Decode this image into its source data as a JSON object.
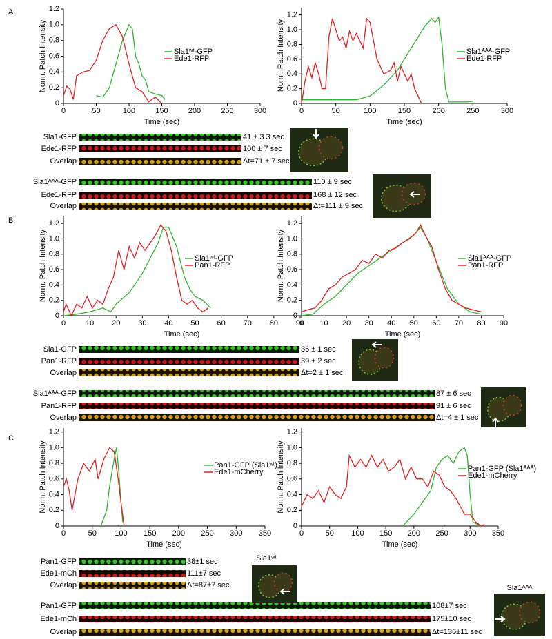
{
  "panels": [
    "A",
    "B",
    "C"
  ],
  "chart_data": [
    {
      "type": "line",
      "xlabel": "Time (sec)",
      "ylabel": "Norm. Patch Intensity",
      "xlim": [
        0,
        300
      ],
      "xticks": [
        0,
        50,
        100,
        150,
        200,
        250,
        300
      ],
      "ylim": [
        0,
        1.2
      ],
      "yticks": [
        0,
        0.2,
        0.4,
        0.6,
        0.8,
        {
          "value": 1,
          "label": "1.0"
        },
        1.2
      ],
      "series": [
        {
          "name": "Sla1ʷᵗ-GFP",
          "color": "#2eb82e",
          "x": [
            50,
            60,
            70,
            80,
            90,
            100,
            105,
            110,
            115,
            120,
            125,
            130,
            140,
            150,
            155
          ],
          "values": [
            0.1,
            0.08,
            0.2,
            0.5,
            0.8,
            1.0,
            0.95,
            0.6,
            0.5,
            0.35,
            0.3,
            0.15,
            0.12,
            0.1,
            0.05
          ]
        },
        {
          "name": "Ede1-RFP",
          "color": "#e02020",
          "x": [
            0,
            5,
            10,
            15,
            20,
            30,
            40,
            50,
            60,
            70,
            80,
            90,
            100,
            110,
            120,
            130,
            140,
            150
          ],
          "values": [
            0.1,
            0.22,
            0.18,
            0.05,
            0.35,
            0.4,
            0.42,
            0.55,
            0.8,
            0.95,
            1.0,
            0.85,
            0.5,
            0.2,
            0.15,
            0.02,
            0.08,
            0.0
          ]
        }
      ]
    },
    {
      "type": "line",
      "xlabel": "Time (sec)",
      "ylabel": "Norm. Patch Intensity",
      "xlim": [
        0,
        300
      ],
      "xticks": [
        0,
        50,
        100,
        150,
        200,
        250,
        300
      ],
      "ylim": [
        0,
        1.3
      ],
      "yticks": [
        0,
        0.2,
        0.4,
        0.6,
        0.8,
        {
          "value": 1,
          "label": "1.0"
        },
        1.2
      ],
      "series": [
        {
          "name": "Sla1ᴬᴬᴬ-GFP",
          "color": "#2eb82e",
          "x": [
            0,
            20,
            50,
            80,
            100,
            120,
            140,
            150,
            160,
            170,
            180,
            190,
            195,
            200,
            205,
            210,
            215,
            240,
            250
          ],
          "values": [
            0.05,
            0.05,
            0.05,
            0.05,
            0.1,
            0.25,
            0.45,
            0.6,
            0.75,
            0.9,
            1.05,
            1.15,
            1.1,
            1.17,
            0.8,
            0.2,
            0.02,
            0.02,
            0.03
          ]
        },
        {
          "name": "Ede1-RFP",
          "color": "#e02020",
          "x": [
            0,
            5,
            10,
            15,
            20,
            25,
            30,
            35,
            40,
            45,
            50,
            55,
            60,
            65,
            70,
            75,
            80,
            85,
            90,
            95,
            100,
            110,
            120,
            130,
            135,
            140,
            145,
            150,
            155,
            160,
            165,
            170,
            175
          ],
          "values": [
            0.0,
            0.3,
            0.5,
            0.35,
            0.55,
            0.4,
            0.2,
            0.2,
            0.9,
            1.15,
            1.0,
            0.85,
            0.9,
            0.75,
            0.98,
            0.85,
            0.95,
            0.85,
            0.75,
            1.15,
            1.1,
            0.6,
            0.4,
            0.45,
            0.55,
            0.3,
            0.5,
            0.4,
            0.3,
            0.4,
            0.2,
            0.1,
            0.0
          ]
        }
      ]
    },
    {
      "type": "line",
      "xlabel": "Time (sec)",
      "ylabel": "Norm. Patch Intensity",
      "xlim": [
        0,
        90
      ],
      "xticks": [
        0,
        10,
        20,
        30,
        40,
        50,
        60,
        70,
        80,
        90
      ],
      "ylim": [
        0,
        1.3
      ],
      "yticks": [
        0,
        0.2,
        0.4,
        0.6,
        0.8,
        {
          "value": 1,
          "label": "1.0"
        },
        1.2
      ],
      "series": [
        {
          "name": "Sla1ʷᵗ-GFP",
          "color": "#2eb82e",
          "x": [
            0,
            5,
            10,
            15,
            18,
            20,
            25,
            30,
            33,
            36,
            38,
            40,
            43,
            46,
            48,
            50,
            53,
            56
          ],
          "values": [
            0,
            0.02,
            0.05,
            0.1,
            0.05,
            0.15,
            0.3,
            0.55,
            0.75,
            0.95,
            1.15,
            1.15,
            0.9,
            0.5,
            0.35,
            0.25,
            0.2,
            0.1
          ]
        },
        {
          "name": "Pan1-RFP",
          "color": "#e02020",
          "x": [
            0,
            1,
            3,
            5,
            7,
            9,
            11,
            13,
            15,
            17,
            19,
            21,
            23,
            25,
            27,
            29,
            31,
            33,
            35,
            37,
            39,
            41,
            43,
            45,
            47,
            49,
            51,
            53,
            55
          ],
          "values": [
            0.05,
            0.15,
            0.0,
            0.15,
            0.1,
            0.25,
            0.1,
            0.2,
            0.15,
            0.35,
            0.5,
            0.85,
            0.6,
            0.9,
            0.75,
            0.95,
            0.85,
            0.95,
            1.05,
            1.18,
            1.1,
            0.85,
            0.5,
            0.2,
            0.15,
            0.2,
            0.1,
            0.05,
            0.1
          ]
        }
      ]
    },
    {
      "type": "line",
      "xlabel": "Time (sec)",
      "ylabel": "Norm. Patch Intensity",
      "xlim": [
        0,
        90
      ],
      "xticks": [
        0,
        10,
        20,
        30,
        40,
        50,
        60,
        70,
        80,
        90
      ],
      "ylim": [
        0,
        1.3
      ],
      "yticks": [
        0,
        0.2,
        0.4,
        0.6,
        0.8,
        {
          "value": 1,
          "label": "1.0"
        },
        1.2
      ],
      "series": [
        {
          "name": "Sla1ᴬᴬᴬ-GFP",
          "color": "#2eb82e",
          "x": [
            0,
            5,
            10,
            15,
            20,
            25,
            30,
            35,
            40,
            45,
            50,
            53,
            56,
            60,
            65,
            70,
            75,
            80
          ],
          "values": [
            0,
            0.02,
            0.15,
            0.25,
            0.4,
            0.55,
            0.65,
            0.75,
            0.85,
            0.95,
            1.05,
            1.15,
            1.0,
            0.7,
            0.35,
            0.15,
            0.05,
            0.02
          ]
        },
        {
          "name": "Pan1-RFP",
          "color": "#e02020",
          "x": [
            0,
            3,
            6,
            9,
            12,
            15,
            18,
            21,
            24,
            27,
            30,
            33,
            36,
            39,
            42,
            45,
            48,
            51,
            53,
            55,
            58,
            61,
            64,
            67,
            70,
            73,
            76,
            80
          ],
          "values": [
            0.05,
            0.08,
            0.1,
            0.2,
            0.35,
            0.4,
            0.5,
            0.55,
            0.6,
            0.72,
            0.68,
            0.8,
            0.75,
            0.85,
            0.88,
            0.95,
            1.0,
            1.08,
            1.18,
            1.05,
            0.9,
            0.6,
            0.35,
            0.2,
            0.15,
            0.1,
            0.08,
            0.05
          ]
        }
      ]
    },
    {
      "type": "line",
      "xlabel": "Time (sec)",
      "ylabel": "Norm. Patch Intensity",
      "xlim": [
        0,
        350
      ],
      "xticks": [
        0,
        50,
        100,
        150,
        200,
        250,
        300,
        350
      ],
      "ylim": [
        0,
        1.25
      ],
      "yticks": [
        0,
        0.2,
        0.4,
        0.6,
        0.8,
        {
          "value": 1,
          "label": "1.0"
        },
        1.2
      ],
      "series": [
        {
          "name": "Pan1-GFP (Sla1ʷᵗ)",
          "color": "#2eb82e",
          "x": [
            65,
            75,
            80,
            88,
            92,
            96,
            100,
            103
          ],
          "values": [
            0.0,
            0.2,
            0.5,
            0.85,
            1.0,
            0.7,
            0.3,
            0.05
          ]
        },
        {
          "name": "Ede1-mCherry",
          "color": "#e02020",
          "x": [
            0,
            5,
            10,
            15,
            25,
            35,
            45,
            55,
            60,
            70,
            80,
            88,
            95,
            100,
            105
          ],
          "values": [
            0.5,
            0.6,
            0.45,
            0.2,
            0.6,
            0.8,
            0.7,
            0.85,
            0.6,
            0.85,
            1.0,
            0.95,
            0.6,
            0.3,
            0.02
          ]
        }
      ]
    },
    {
      "type": "line",
      "xlabel": "Time (sec)",
      "ylabel": "Norm. Patch Intensity",
      "xlim": [
        0,
        350
      ],
      "xticks": [
        0,
        50,
        100,
        150,
        200,
        250,
        300,
        350
      ],
      "ylim": [
        0,
        1.25
      ],
      "yticks": [
        0,
        0.2,
        0.4,
        0.6,
        0.8,
        {
          "value": 1,
          "label": "1.0"
        },
        1.2
      ],
      "series": [
        {
          "name": "Pan1-GFP (Sla1ᴬᴬᴬ)",
          "color": "#2eb82e",
          "x": [
            180,
            200,
            215,
            230,
            240,
            250,
            260,
            270,
            280,
            290,
            295,
            300,
            305,
            320
          ],
          "values": [
            0.0,
            0.15,
            0.3,
            0.45,
            0.75,
            0.85,
            0.9,
            0.8,
            0.95,
            1.0,
            0.9,
            0.4,
            0.05,
            0.0
          ]
        },
        {
          "name": "Ede1-mCherry",
          "color": "#e02020",
          "x": [
            0,
            10,
            20,
            30,
            40,
            50,
            60,
            70,
            80,
            85,
            95,
            105,
            115,
            125,
            135,
            145,
            155,
            165,
            175,
            185,
            195,
            205,
            215,
            225,
            235,
            245,
            255,
            265,
            275,
            290,
            300,
            310,
            320,
            325
          ],
          "values": [
            0.25,
            0.4,
            0.35,
            0.45,
            0.3,
            0.5,
            0.4,
            0.35,
            0.5,
            0.9,
            0.75,
            0.85,
            0.75,
            0.9,
            0.75,
            0.85,
            0.7,
            0.75,
            0.85,
            0.6,
            0.75,
            0.6,
            0.6,
            0.5,
            0.7,
            0.65,
            0.5,
            0.45,
            0.35,
            0.15,
            0.15,
            0.05,
            0.0,
            0.02
          ]
        }
      ]
    }
  ],
  "kymographs": [
    {
      "rows": [
        {
          "label": "Sla1-GFP",
          "time": "41 ± 3.3 sec"
        },
        {
          "label": "Ede1-RFP",
          "time": "100 ± 7 sec"
        },
        {
          "label": "Overlap",
          "time": "Δt=71 ± 7 sec"
        }
      ]
    },
    {
      "rows": [
        {
          "label": "Sla1ᴬᴬᴬ-GFP",
          "time": "110 ± 9 sec"
        },
        {
          "label": "Ede1-RFP",
          "time": "168 ± 12 sec"
        },
        {
          "label": "Overlap",
          "time": "Δt=111 ± 9 sec"
        }
      ]
    },
    {
      "rows": [
        {
          "label": "Sla1-GFP",
          "time": "36 ± 1 sec"
        },
        {
          "label": "Pan1-RFP",
          "time": "39 ± 2 sec"
        },
        {
          "label": "Overlap",
          "time": "Δt=2 ± 1 sec"
        }
      ]
    },
    {
      "rows": [
        {
          "label": "Sla1ᴬᴬᴬ-GFP",
          "time": "87 ± 6 sec"
        },
        {
          "label": "Pan1-RFP",
          "time": "91 ± 6 sec"
        },
        {
          "label": "Overlap",
          "time": "Δt=4 ± 1 sec"
        }
      ]
    },
    {
      "rows": [
        {
          "label": "Pan1-GFP",
          "time": "38±1 sec"
        },
        {
          "label": "Ede1-mCh",
          "time": "111±7 sec"
        },
        {
          "label": "Overlap",
          "time": "Δt=87±7 sec"
        }
      ]
    },
    {
      "rows": [
        {
          "label": "Pan1-GFP",
          "time": "108±7 sec"
        },
        {
          "label": "Ede1-mCh",
          "time": "175±10 sec"
        },
        {
          "label": "Overlap",
          "time": "Δt=136±11 sec"
        }
      ]
    }
  ],
  "cell_labels": [
    "Sla1ʷᵗ",
    "Sla1ᴬᴬᴬ"
  ]
}
